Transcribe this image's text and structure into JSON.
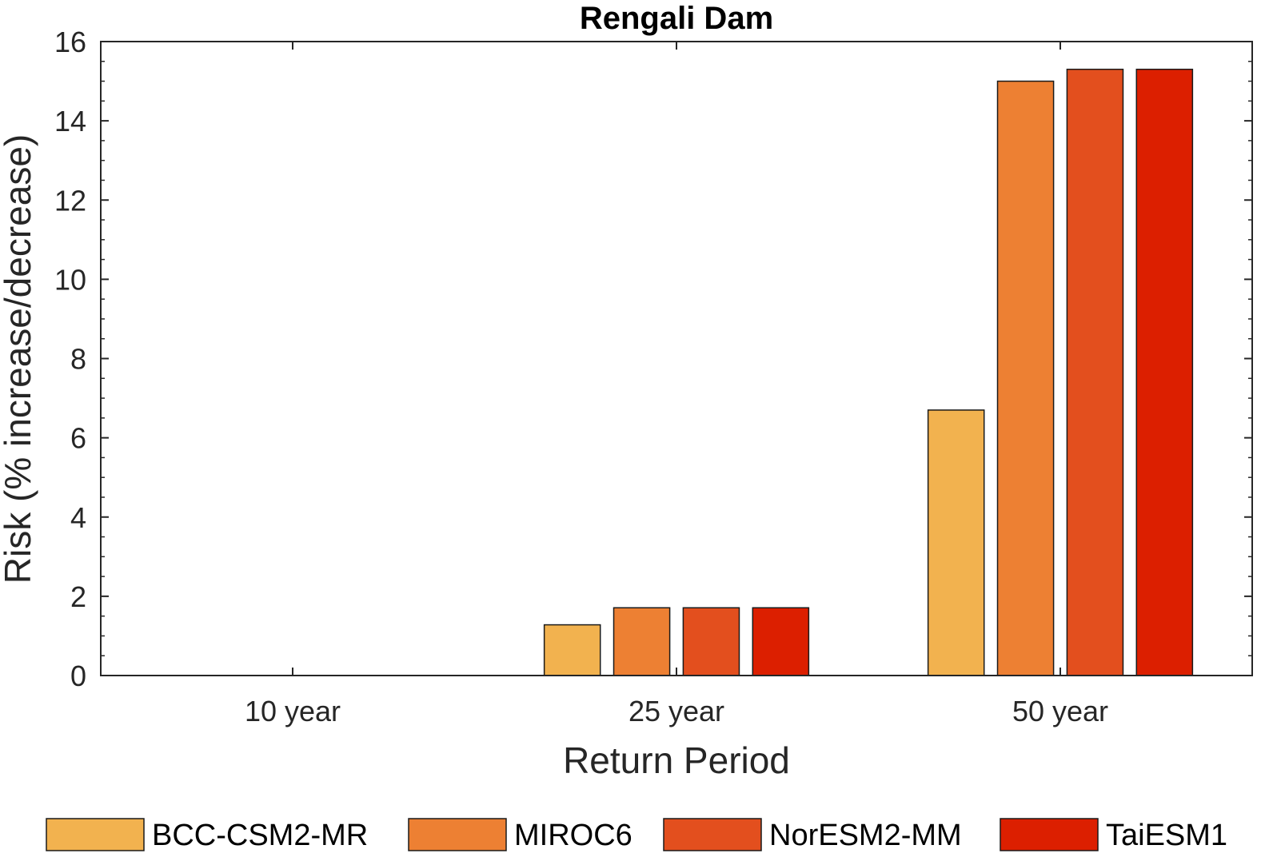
{
  "chart_data": {
    "type": "bar",
    "title": "Rengali Dam",
    "xlabel": "Return Period",
    "ylabel": "Risk (% increase/decrease)",
    "categories": [
      "10 year",
      "25 year",
      "50 year"
    ],
    "ylim": [
      0,
      16
    ],
    "yticks": [
      "0",
      "2",
      "4",
      "6",
      "8",
      "10",
      "12",
      "14",
      "16"
    ],
    "grid": false,
    "legend_position": "bottom",
    "series": [
      {
        "name": "BCC-CSM2-MR",
        "color": "#f2b24f",
        "values": [
          0,
          1.28,
          6.7
        ]
      },
      {
        "name": "MIROC6",
        "color": "#ed8033",
        "values": [
          0,
          1.71,
          15.0
        ]
      },
      {
        "name": "NorESM2-MM",
        "color": "#e34f1e",
        "values": [
          0,
          1.71,
          15.3
        ]
      },
      {
        "name": "TaiESM1",
        "color": "#dc1f00",
        "values": [
          0,
          1.71,
          15.3
        ]
      }
    ]
  }
}
